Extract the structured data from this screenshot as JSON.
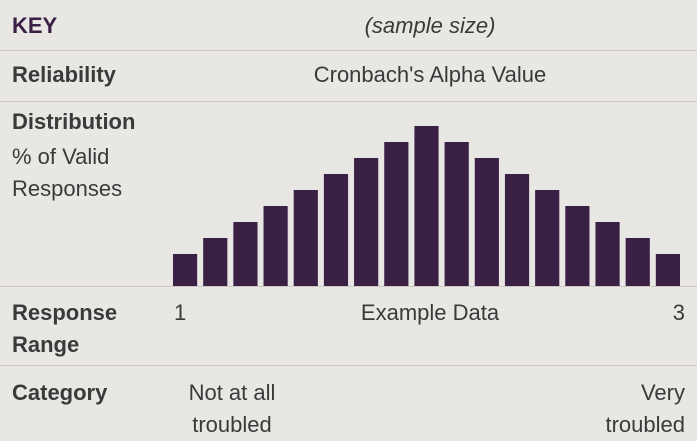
{
  "header": {
    "label": "KEY",
    "note": "(sample size)"
  },
  "reliability": {
    "label": "Reliability",
    "text": "Cronbach's Alpha Value"
  },
  "distribution": {
    "label": "Distribution",
    "sublabel": "% of Valid Responses"
  },
  "chart_data": {
    "type": "bar",
    "values": [
      2,
      3,
      4,
      5,
      6,
      7,
      8,
      9,
      10,
      9,
      8,
      7,
      6,
      5,
      4,
      3,
      2
    ],
    "color": "#3b2046"
  },
  "response_range": {
    "label": "Response Range",
    "min": "1",
    "center": "Example Data",
    "max": "3"
  },
  "category": {
    "label": "Category",
    "low": "Not at all troubled",
    "high": "Very troubled"
  }
}
